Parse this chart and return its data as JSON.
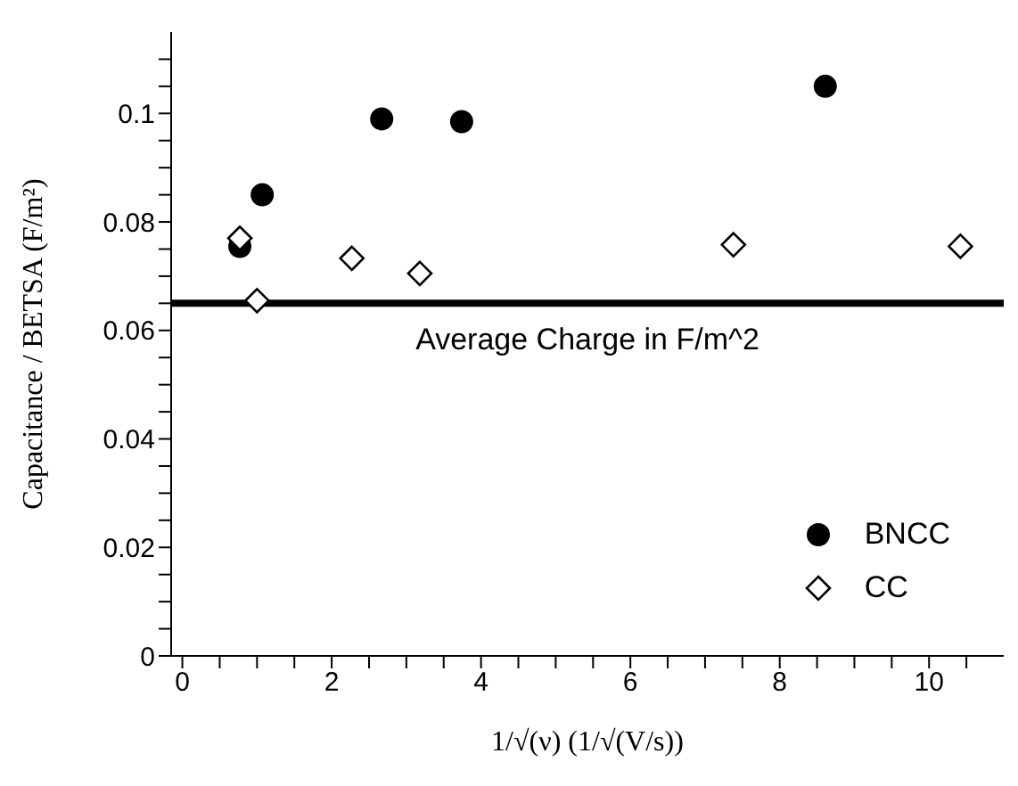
{
  "chart_data": {
    "type": "scatter",
    "xlabel": "1/√(ν) (1/√(V/s))",
    "ylabel": "Capacitance / BETSA (F/m²)",
    "series": [
      {
        "name": "BNCC",
        "color": "#000000",
        "marker": "circle",
        "x": [
          0.77,
          1.07,
          2.67,
          3.74,
          8.61
        ],
        "values": [
          0.0755,
          0.085,
          0.099,
          0.0985,
          0.105
        ]
      },
      {
        "name": "CC",
        "color": "#000000",
        "marker": "diamond",
        "x": [
          0.77,
          1.0,
          2.27,
          3.18,
          7.38,
          10.42
        ],
        "values": [
          0.077,
          0.0655,
          0.0733,
          0.0705,
          0.0758,
          0.0755
        ]
      }
    ],
    "ref_lines": [
      {
        "axis": "y",
        "value": 0.065,
        "label": "Average Charge in F/m^2",
        "color": "#000000"
      }
    ],
    "xlim": [
      -0.15,
      11
    ],
    "xticks": [
      0,
      {
        "value": 0.5,
        "label": null
      },
      {
        "value": 1,
        "label": null
      },
      {
        "value": 1.5,
        "label": null
      },
      2,
      {
        "value": 2.5,
        "label": null
      },
      {
        "value": 3,
        "label": null
      },
      {
        "value": 3.5,
        "label": null
      },
      4,
      {
        "value": 4.5,
        "label": null
      },
      {
        "value": 5,
        "label": null
      },
      {
        "value": 5.5,
        "label": null
      },
      6,
      {
        "value": 6.5,
        "label": null
      },
      {
        "value": 7,
        "label": null
      },
      {
        "value": 7.5,
        "label": null
      },
      8,
      {
        "value": 8.5,
        "label": null
      },
      {
        "value": 9,
        "label": null
      },
      {
        "value": 9.5,
        "label": null
      },
      10,
      {
        "value": 10.5,
        "label": null
      }
    ],
    "ylim": [
      0,
      0.115
    ],
    "yticks": [
      0,
      {
        "value": 0.005,
        "label": null
      },
      {
        "value": 0.01,
        "label": null
      },
      {
        "value": 0.015,
        "label": null
      },
      0.02,
      {
        "value": 0.025,
        "label": null
      },
      {
        "value": 0.03,
        "label": null
      },
      {
        "value": 0.035,
        "label": null
      },
      0.04,
      {
        "value": 0.045,
        "label": null
      },
      {
        "value": 0.05,
        "label": null
      },
      {
        "value": 0.055,
        "label": null
      },
      0.06,
      {
        "value": 0.065,
        "label": null
      },
      {
        "value": 0.07,
        "label": null
      },
      {
        "value": 0.075,
        "label": null
      },
      0.08,
      {
        "value": 0.085,
        "label": null
      },
      {
        "value": 0.09,
        "label": null
      },
      {
        "value": 0.095,
        "label": null
      },
      0.1,
      {
        "value": 0.105,
        "label": null
      },
      {
        "value": 0.11,
        "label": null
      }
    ],
    "grid": false,
    "legend": "bottom right"
  }
}
